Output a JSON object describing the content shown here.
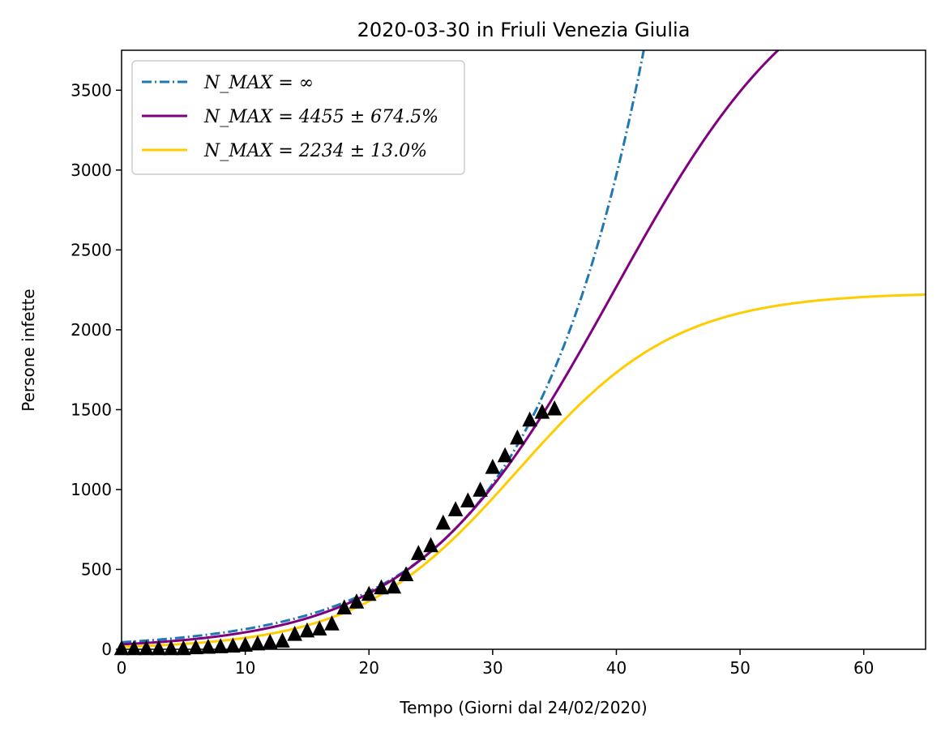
{
  "chart_data": {
    "type": "line",
    "title": "2020-03-30 in Friuli Venezia Giulia",
    "xlabel": "Tempo (Giorni dal 24/02/2020)",
    "ylabel": "Persone infette",
    "xlim": [
      0,
      65
    ],
    "ylim": [
      0,
      3750
    ],
    "xticks": [
      0,
      10,
      20,
      30,
      40,
      50,
      60
    ],
    "yticks": [
      0,
      500,
      1000,
      1500,
      2000,
      2500,
      3000,
      3500
    ],
    "grid": false,
    "legend_position": "top-left",
    "series": [
      {
        "name": "N_MAX = ∞",
        "legend_label": "N_MAX = ∞",
        "style": "dashdot",
        "color": "#1f77b4",
        "model": "exponential",
        "params": {
          "a": 44,
          "b": 0.1053
        }
      },
      {
        "name": "N_MAX = 4455 ± 674.5%",
        "legend_label": "N_MAX = 4455 ± 674.5%",
        "style": "solid",
        "color": "#800080",
        "model": "logistic",
        "params": {
          "K": 4455,
          "r": 0.125,
          "t0": 39.7
        }
      },
      {
        "name": "N_MAX = 2234 ± 13.0%",
        "legend_label": "N_MAX = 2234 ± 13.0%",
        "style": "solid",
        "color": "#ffcc00",
        "model": "logistic",
        "params": {
          "K": 2234,
          "r": 0.155,
          "t0": 32.0
        }
      }
    ],
    "observed": {
      "marker": "triangle",
      "color": "#000000",
      "x": [
        0,
        1,
        2,
        3,
        4,
        5,
        6,
        7,
        8,
        9,
        10,
        11,
        12,
        13,
        14,
        15,
        16,
        17,
        18,
        19,
        20,
        21,
        22,
        23,
        24,
        25,
        26,
        27,
        28,
        29,
        30,
        31,
        32,
        33,
        34,
        35
      ],
      "y": [
        0,
        0,
        0,
        0,
        0,
        0,
        6,
        9,
        12,
        16,
        22,
        30,
        40,
        48,
        90,
        111,
        123,
        155,
        255,
        292,
        340,
        381,
        386,
        463,
        596,
        645,
        786,
        870,
        925,
        992,
        1135,
        1208,
        1319,
        1431,
        1480,
        1501
      ]
    }
  }
}
